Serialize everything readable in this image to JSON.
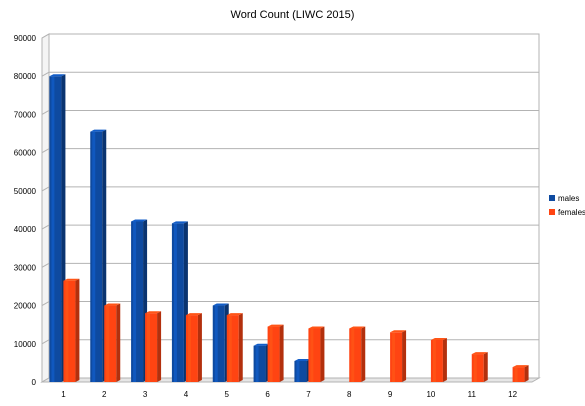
{
  "chart_data": {
    "type": "bar",
    "title": "Word Count (LIWC 2015)",
    "categories": [
      "1",
      "2",
      "3",
      "4",
      "5",
      "6",
      "7",
      "8",
      "9",
      "10",
      "11",
      "12"
    ],
    "series": [
      {
        "name": "males",
        "color": "#0e4aa0",
        "values": [
          80000,
          65500,
          42000,
          41500,
          20000,
          9500,
          5500,
          0,
          0,
          0,
          0,
          0
        ]
      },
      {
        "name": "females",
        "color": "#ff4412",
        "values": [
          26500,
          20000,
          18000,
          17500,
          17500,
          14500,
          14000,
          14000,
          13000,
          11000,
          7300,
          3900
        ]
      }
    ],
    "ylim": [
      0,
      90000
    ],
    "yticks": [
      "0",
      "10000",
      "20000",
      "30000",
      "40000",
      "50000",
      "60000",
      "70000",
      "80000",
      "90000"
    ],
    "grid": true,
    "legend_position": "right"
  }
}
